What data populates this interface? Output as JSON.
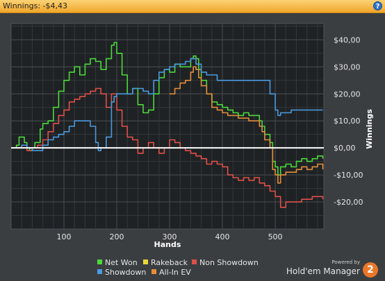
{
  "titlebar": {
    "title": "Winnings: -$4,43",
    "help_icon": "question-icon",
    "help_label": "?"
  },
  "brand": {
    "powered_by": "Powered by",
    "name": "Hold'em Manager",
    "badge": "2"
  },
  "legend": {
    "items": [
      {
        "label": "Net Won",
        "color": "#4cd93c"
      },
      {
        "label": "Rakeback",
        "color": "#e8d63a"
      },
      {
        "label": "Non Showdown",
        "color": "#e0504a"
      },
      {
        "label": "Showdown",
        "color": "#4a9be0"
      },
      {
        "label": "All-In EV",
        "color": "#e58e3a"
      }
    ]
  },
  "chart_data": {
    "type": "line",
    "xlabel": "Hands",
    "ylabel": "Winnings",
    "xlim": [
      0,
      592
    ],
    "ylim": [
      -30,
      46
    ],
    "x_ticks": [
      100,
      200,
      300,
      400,
      500
    ],
    "x_tick_labels": [
      "100",
      "200",
      "300",
      "400",
      "500"
    ],
    "y_ticks": [
      40,
      30,
      20,
      10,
      0,
      -10,
      -20
    ],
    "y_tick_labels": [
      "$40,00",
      "$30,00",
      "$20,00",
      "$10,00",
      "$0,00",
      "-$10,00",
      "-$20,00"
    ],
    "grid": true,
    "zero_line": 0,
    "series": [
      {
        "name": "Net Won",
        "color": "#4cd93c",
        "x": [
          0,
          10,
          15,
          25,
          30,
          35,
          40,
          45,
          55,
          60,
          70,
          80,
          90,
          100,
          110,
          120,
          130,
          140,
          150,
          160,
          170,
          180,
          190,
          195,
          200,
          210,
          220,
          230,
          240,
          250,
          260,
          270,
          280,
          290,
          300,
          310,
          320,
          330,
          340,
          345,
          350,
          355,
          360,
          370,
          380,
          390,
          400,
          410,
          420,
          430,
          440,
          450,
          460,
          470,
          475,
          480,
          490,
          495,
          500,
          505,
          510,
          520,
          530,
          540,
          550,
          560,
          570,
          580,
          590
        ],
        "y": [
          0,
          1,
          4,
          2,
          0,
          -1,
          0,
          2,
          7,
          9,
          10,
          15,
          21,
          25,
          28,
          30,
          27,
          31,
          33,
          32,
          29,
          33,
          38,
          39,
          35,
          27,
          20,
          22,
          16,
          13,
          14,
          20,
          26,
          29,
          28,
          31,
          30,
          30,
          33,
          34,
          33,
          29,
          25,
          20,
          17,
          16,
          15,
          14,
          13,
          12,
          13,
          12,
          12,
          10,
          8,
          5,
          2,
          -5,
          -7,
          -10,
          -7,
          -6,
          -7,
          -5,
          -4,
          -5,
          -4,
          -3,
          -4
        ]
      },
      {
        "name": "Non Showdown",
        "color": "#e0504a",
        "x": [
          0,
          20,
          30,
          40,
          50,
          60,
          70,
          80,
          90,
          100,
          110,
          120,
          130,
          140,
          150,
          160,
          170,
          180,
          190,
          200,
          210,
          220,
          230,
          240,
          250,
          260,
          270,
          280,
          290,
          300,
          310,
          320,
          330,
          340,
          350,
          360,
          370,
          380,
          390,
          400,
          410,
          420,
          430,
          440,
          450,
          460,
          470,
          480,
          490,
          500,
          510,
          520,
          530,
          540,
          550,
          560,
          570,
          580,
          590
        ],
        "y": [
          0,
          0,
          -1,
          0,
          1,
          3,
          6,
          9,
          12,
          14,
          17,
          18,
          19,
          20,
          21,
          22,
          20,
          15,
          20,
          14,
          8,
          4,
          3,
          -2,
          0,
          2,
          0,
          -2,
          0,
          3,
          2,
          0,
          -1,
          -2,
          -3,
          -4,
          -6,
          -5,
          -6,
          -7,
          -10,
          -11,
          -12,
          -11,
          -12,
          -11,
          -13,
          -14,
          -16,
          -18,
          -22,
          -20,
          -20,
          -20,
          -19,
          -19,
          -18,
          -18,
          -19
        ]
      },
      {
        "name": "Showdown",
        "color": "#4a9be0",
        "x": [
          0,
          10,
          20,
          30,
          40,
          50,
          60,
          70,
          80,
          90,
          100,
          110,
          120,
          140,
          150,
          160,
          165,
          170,
          180,
          190,
          195,
          200,
          220,
          230,
          250,
          260,
          270,
          280,
          290,
          300,
          310,
          320,
          330,
          340,
          350,
          360,
          370,
          380,
          390,
          400,
          410,
          420,
          430,
          440,
          450,
          460,
          470,
          480,
          490,
          500,
          505,
          510,
          520,
          530,
          540,
          550,
          560,
          570,
          580,
          590
        ],
        "y": [
          0,
          0,
          1,
          0,
          -1,
          -1,
          1,
          3,
          4,
          5,
          6,
          8,
          10,
          10,
          8,
          2,
          -1,
          0,
          4,
          17,
          19,
          20,
          20,
          22,
          21,
          20,
          25,
          28,
          29,
          30,
          31,
          31,
          32,
          33,
          31,
          28,
          27,
          27,
          25,
          25,
          25,
          25,
          25,
          25,
          25,
          25,
          25,
          25,
          20,
          14,
          12,
          13,
          13,
          14,
          14,
          14,
          14,
          14,
          14,
          14
        ]
      },
      {
        "name": "All-In EV",
        "color": "#e58e3a",
        "x": [
          300,
          310,
          320,
          330,
          340,
          345,
          350,
          355,
          360,
          370,
          380,
          390,
          400,
          410,
          420,
          430,
          440,
          450,
          460,
          470,
          475,
          480,
          490,
          495,
          500,
          505,
          510,
          520,
          530,
          540,
          550,
          560,
          570,
          580,
          590
        ],
        "y": [
          20,
          22,
          24,
          25,
          28,
          30,
          29,
          26,
          23,
          20,
          15,
          14,
          13,
          12,
          12,
          11,
          11,
          10,
          10,
          8,
          6,
          3,
          0,
          -8,
          -10,
          -13,
          -10,
          -9,
          -9,
          -8,
          -7,
          -8,
          -7,
          -6,
          -8
        ]
      }
    ]
  }
}
